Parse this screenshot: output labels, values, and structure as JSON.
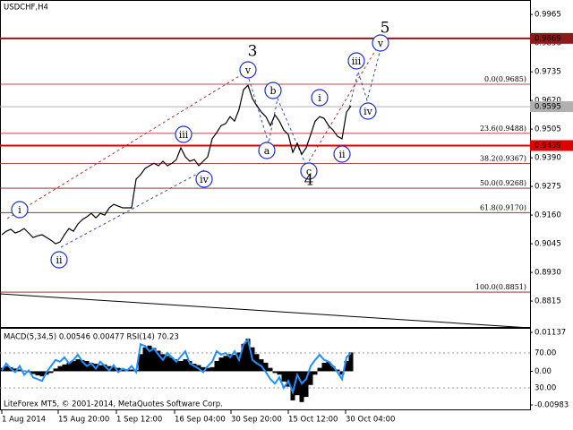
{
  "chart_data": [
    {
      "type": "line",
      "title": "USDCHF,H4",
      "color": "#000000",
      "values": [
        0.9081,
        0.9095,
        0.9103,
        0.9088,
        0.9095,
        0.9106,
        0.9088,
        0.907,
        0.9077,
        0.9081,
        0.907,
        0.9059,
        0.9045,
        0.9052,
        0.9081,
        0.9106,
        0.9095,
        0.9124,
        0.9142,
        0.9153,
        0.9167,
        0.9149,
        0.9167,
        0.916,
        0.9189,
        0.9203,
        0.9196,
        0.9189,
        0.9189,
        0.9189,
        0.9304,
        0.9322,
        0.9347,
        0.9358,
        0.9368,
        0.9358,
        0.9376,
        0.9358,
        0.9368,
        0.9383,
        0.943,
        0.9394,
        0.9376,
        0.9383,
        0.9358,
        0.9376,
        0.9394,
        0.9466,
        0.9491,
        0.9519,
        0.9527,
        0.9555,
        0.9537,
        0.9584,
        0.9663,
        0.9681,
        0.9627,
        0.9598,
        0.9573,
        0.9555,
        0.9519,
        0.9562,
        0.9537,
        0.9501,
        0.9483,
        0.9412,
        0.9448,
        0.9404,
        0.943,
        0.9483,
        0.9537,
        0.9555,
        0.9548,
        0.9519,
        0.9501,
        0.9476,
        0.9466,
        0.9573,
        0.9598
      ],
      "xlim": [
        0,
        118
      ],
      "xticks": [
        {
          "value": 0,
          "label": "1 Aug 2014"
        },
        {
          "value": 12.6,
          "label": "15 Aug 20:00"
        },
        {
          "value": 25.6,
          "label": "1 Sep 12:00"
        },
        {
          "value": 38.6,
          "label": "16 Sep 04:00"
        },
        {
          "value": 51.2,
          "label": "30 Sep 20:00"
        },
        {
          "value": 64,
          "label": "15 Oct 12:00"
        },
        {
          "value": 76.8,
          "label": "30 Oct 04:00"
        }
      ],
      "ylim": [
        0.8711,
        1.0023
      ],
      "yticks": [
        0.9965,
        {
          "value": 0.985,
          "label": "0.9850"
        },
        0.9735,
        {
          "value": 0.962,
          "label": "0.9620"
        },
        0.9505,
        {
          "value": 0.939,
          "label": "0.9390"
        },
        0.9275,
        {
          "value": 0.916,
          "label": "0.9160"
        },
        0.9045,
        {
          "value": 0.893,
          "label": "0.8930"
        },
        0.8815
      ],
      "price_lines": [
        {
          "value": 0.9869,
          "color": "#8b1a1a"
        },
        {
          "value": 0.9595,
          "color": "#b0b0b0"
        },
        {
          "value": 0.9439,
          "color": "#e00000"
        }
      ],
      "fib_levels": [
        {
          "value": 0.9685,
          "label": "0.0(0.9685)"
        },
        {
          "value": 0.9488,
          "label": "23.6(0.9488)"
        },
        {
          "value": 0.9367,
          "label": "38.2(0.9367)"
        },
        {
          "value": 0.9268,
          "label": "50.0(0.9268)"
        },
        {
          "value": 0.917,
          "label": "61.8(0.9170)"
        },
        {
          "value": 0.8851,
          "label": "100.0(0.8851)"
        }
      ],
      "waves": [
        "i",
        "ii",
        "iii",
        "iv",
        "v",
        "a",
        "b",
        "c",
        "i",
        "ii",
        "iii",
        "iv",
        "v",
        "3",
        "4",
        "5"
      ]
    },
    {
      "type": "bar",
      "title": "MACD(5,34,5) 0.00546 0.00477 RSI(14) 70.23",
      "ylim": [
        -0.00983,
        0.01137
      ],
      "yticks": [
        0.01137,
        {
          "value": 0,
          "label": "0.00"
        },
        -0.00983
      ],
      "y2lim": [
        10.5,
        93.6
      ],
      "y2ticks": [
        {
          "value": 70,
          "label": "70.00"
        },
        {
          "value": 30,
          "label": "30.00"
        }
      ],
      "series": [
        {
          "color": "#000000",
          "style": "bar",
          "values": [
            0.001,
            0.0015,
            0.0012,
            0.0008,
            0.0005,
            0.0002,
            -0.0003,
            -0.0008,
            -0.0012,
            -0.0015,
            -0.001,
            -0.0005,
            0.0008,
            0.0015,
            0.002,
            0.0025,
            0.003,
            0.0035,
            0.0033,
            0.003,
            0.0025,
            0.0022,
            0.0018,
            0.002,
            0.0015,
            0.0012,
            0.001,
            0.0008,
            0.0006,
            0.0005,
            0.0004,
            0.005,
            0.007,
            0.0075,
            0.0068,
            0.006,
            0.005,
            0.0045,
            0.004,
            0.0035,
            0.003,
            0.0035,
            0.003,
            0.0022,
            0.0018,
            0.0012,
            0.001,
            0.0012,
            0.003,
            0.004,
            0.0045,
            0.005,
            0.0048,
            0.0055,
            0.008,
            0.0095,
            0.007,
            0.005,
            0.0035,
            0.0025,
            0.001,
            -0.0005,
            -0.001,
            -0.003,
            -0.0045,
            -0.0085,
            -0.007,
            -0.009,
            -0.0075,
            -0.004,
            -0.001,
            0.001,
            0.0025,
            0.0028,
            0.0015,
            0.0005,
            -0.001,
            0.003,
            0.0055
          ]
        },
        {
          "color": "#1e90ff",
          "style": "line",
          "axis": "y2",
          "values": [
            50,
            58,
            52,
            48,
            55,
            45,
            50,
            42,
            40,
            38,
            48,
            55,
            62,
            60,
            65,
            58,
            62,
            68,
            60,
            55,
            58,
            52,
            60,
            55,
            50,
            56,
            48,
            52,
            50,
            55,
            48,
            80,
            78,
            72,
            75,
            68,
            62,
            70,
            65,
            60,
            66,
            72,
            58,
            55,
            52,
            48,
            55,
            60,
            72,
            68,
            70,
            65,
            72,
            62,
            80,
            85,
            62,
            58,
            55,
            48,
            40,
            35,
            42,
            30,
            38,
            25,
            45,
            35,
            40,
            55,
            62,
            68,
            62,
            60,
            55,
            48,
            40,
            65,
            70
          ]
        }
      ]
    }
  ],
  "footer": "LiteForex MT5, © 2001-2014, MetaQuotes Software Corp."
}
